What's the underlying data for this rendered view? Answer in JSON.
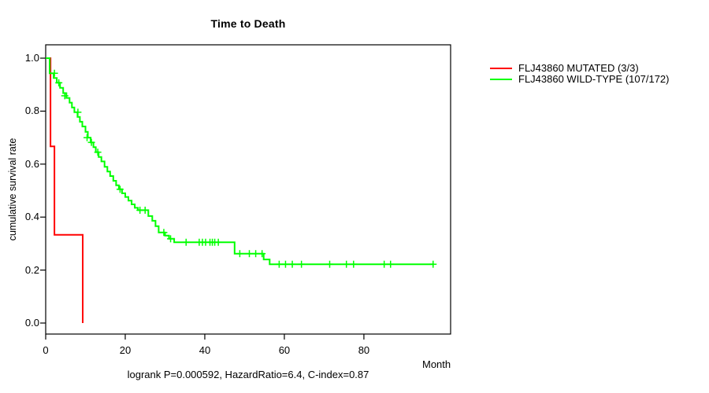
{
  "chart_data": {
    "type": "line",
    "subtype": "kaplan-meier-step-survival",
    "title": "Time to Death",
    "xlabel": "Month",
    "ylabel": "cumulative survival rate",
    "annotation": "logrank P=0.000592, HazardRatio=6.4, C-index=0.87",
    "xlim": [
      0,
      101.8
    ],
    "ylim": [
      0,
      1
    ],
    "xticks": [
      "0",
      "20",
      "40",
      "60",
      "80"
    ],
    "yticks": [
      "0.0",
      "0.2",
      "0.4",
      "0.6",
      "0.8",
      "1.0"
    ],
    "grid": false,
    "legend_position": "right-outside",
    "axis_color": "#000000",
    "series": [
      {
        "name": "FLJ43860 MUTATED (3/3)",
        "color": "#FF0000",
        "start": [
          0,
          1.0
        ],
        "steps": [
          [
            1.2,
            0.667
          ],
          [
            2.2,
            0.333
          ],
          [
            9.3,
            0.0
          ]
        ],
        "end_month": 9.3,
        "censors": []
      },
      {
        "name": "FLJ43860 WILD-TYPE (107/172)",
        "color": "#00FF00",
        "start": [
          0,
          1.0
        ],
        "steps": [
          [
            1,
            0.943
          ],
          [
            2,
            0.925
          ],
          [
            2.8,
            0.907
          ],
          [
            3.6,
            0.888
          ],
          [
            4.4,
            0.868
          ],
          [
            5.2,
            0.85
          ],
          [
            6,
            0.832
          ],
          [
            6.6,
            0.814
          ],
          [
            7.2,
            0.796
          ],
          [
            8,
            0.778
          ],
          [
            8.6,
            0.76
          ],
          [
            9.2,
            0.742
          ],
          [
            10,
            0.722
          ],
          [
            10.6,
            0.7
          ],
          [
            11.3,
            0.682
          ],
          [
            12,
            0.664
          ],
          [
            12.6,
            0.645
          ],
          [
            13.3,
            0.627
          ],
          [
            14,
            0.61
          ],
          [
            14.8,
            0.59
          ],
          [
            15.5,
            0.572
          ],
          [
            16.2,
            0.555
          ],
          [
            17,
            0.537
          ],
          [
            17.7,
            0.52
          ],
          [
            18.4,
            0.505
          ],
          [
            19.2,
            0.49
          ],
          [
            20,
            0.476
          ],
          [
            20.8,
            0.462
          ],
          [
            21.6,
            0.448
          ],
          [
            22.4,
            0.435
          ],
          [
            23.2,
            0.426
          ],
          [
            25.8,
            0.404
          ],
          [
            26.8,
            0.386
          ],
          [
            27.6,
            0.366
          ],
          [
            28.4,
            0.342
          ],
          [
            30,
            0.33
          ],
          [
            31,
            0.318
          ],
          [
            32.3,
            0.305
          ],
          [
            47.5,
            0.262
          ],
          [
            54.8,
            0.24
          ],
          [
            56.3,
            0.222
          ]
        ],
        "end_month": 97.6,
        "censors": [
          [
            2.2,
            0.943
          ],
          [
            3.3,
            0.907
          ],
          [
            4.8,
            0.858
          ],
          [
            8.1,
            0.796
          ],
          [
            10.4,
            0.7
          ],
          [
            11.5,
            0.682
          ],
          [
            13.1,
            0.645
          ],
          [
            18.7,
            0.505
          ],
          [
            23.7,
            0.426
          ],
          [
            25,
            0.426
          ],
          [
            29.7,
            0.342
          ],
          [
            31.4,
            0.318
          ],
          [
            35.3,
            0.305
          ],
          [
            38.6,
            0.305
          ],
          [
            39.4,
            0.305
          ],
          [
            40.2,
            0.305
          ],
          [
            41.3,
            0.305
          ],
          [
            41.9,
            0.305
          ],
          [
            42.5,
            0.305
          ],
          [
            43.4,
            0.305
          ],
          [
            48.8,
            0.262
          ],
          [
            51.2,
            0.262
          ],
          [
            52.8,
            0.262
          ],
          [
            54.4,
            0.262
          ],
          [
            58.7,
            0.222
          ],
          [
            60.3,
            0.222
          ],
          [
            62,
            0.222
          ],
          [
            64.3,
            0.222
          ],
          [
            71.4,
            0.222
          ],
          [
            75.6,
            0.222
          ],
          [
            77.4,
            0.222
          ],
          [
            85.1,
            0.222
          ],
          [
            86.7,
            0.222
          ],
          [
            97.4,
            0.222
          ]
        ]
      }
    ]
  }
}
